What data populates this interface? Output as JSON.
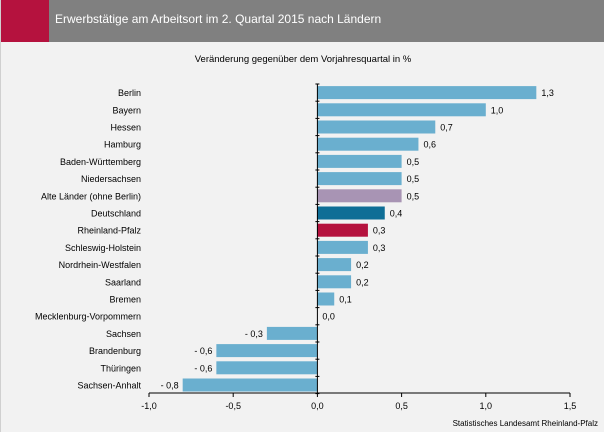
{
  "header": {
    "title": "Erwerbstätige am Arbeitsort im 2. Quartal 2015 nach Ländern",
    "accent_color": "#b5123e",
    "background_color": "#808080"
  },
  "footer": {
    "source": "Statistisches Landesamt Rheinland-Pfalz"
  },
  "chart_data": {
    "type": "bar",
    "orientation": "horizontal",
    "subtitle": "Veränderung gegenüber dem Vorjahresquartal in %",
    "categories": [
      "Berlin",
      "Bayern",
      "Hessen",
      "Hamburg",
      "Baden-Württemberg",
      "Niedersachsen",
      "Alte Länder (ohne Berlin)",
      "Deutschland",
      "Rheinland-Pfalz",
      "Schleswig-Holstein",
      "Nordrhein-Westfalen",
      "Saarland",
      "Bremen",
      "Mecklenburg-Vorpommern",
      "Sachsen",
      "Brandenburg",
      "Thüringen",
      "Sachsen-Anhalt"
    ],
    "values": [
      1.3,
      1.0,
      0.7,
      0.6,
      0.5,
      0.5,
      0.5,
      0.4,
      0.3,
      0.3,
      0.2,
      0.2,
      0.1,
      0.0,
      -0.3,
      -0.6,
      -0.6,
      -0.8
    ],
    "value_labels": [
      "1,3",
      "1,0",
      "0,7",
      "0,6",
      "0,5",
      "0,5",
      "0,5",
      "0,4",
      "0,3",
      "0,3",
      "0,2",
      "0,2",
      "0,1",
      "0,0",
      "- 0,3",
      "- 0,6",
      "- 0,6",
      "- 0,8"
    ],
    "bar_colors": [
      "#6aafcf",
      "#6aafcf",
      "#6aafcf",
      "#6aafcf",
      "#6aafcf",
      "#6aafcf",
      "#a894b4",
      "#0f6e96",
      "#b5123e",
      "#6aafcf",
      "#6aafcf",
      "#6aafcf",
      "#6aafcf",
      "#6aafcf",
      "#6aafcf",
      "#6aafcf",
      "#6aafcf",
      "#6aafcf"
    ],
    "xlim": [
      -1.0,
      1.5
    ],
    "xticks": [
      -1.0,
      -0.5,
      0.0,
      0.5,
      1.0,
      1.5
    ],
    "xtick_labels": [
      "-1,0",
      "-0,5",
      "0,0",
      "0,5",
      "1,0",
      "1,5"
    ],
    "grid": false,
    "legend": "none"
  }
}
